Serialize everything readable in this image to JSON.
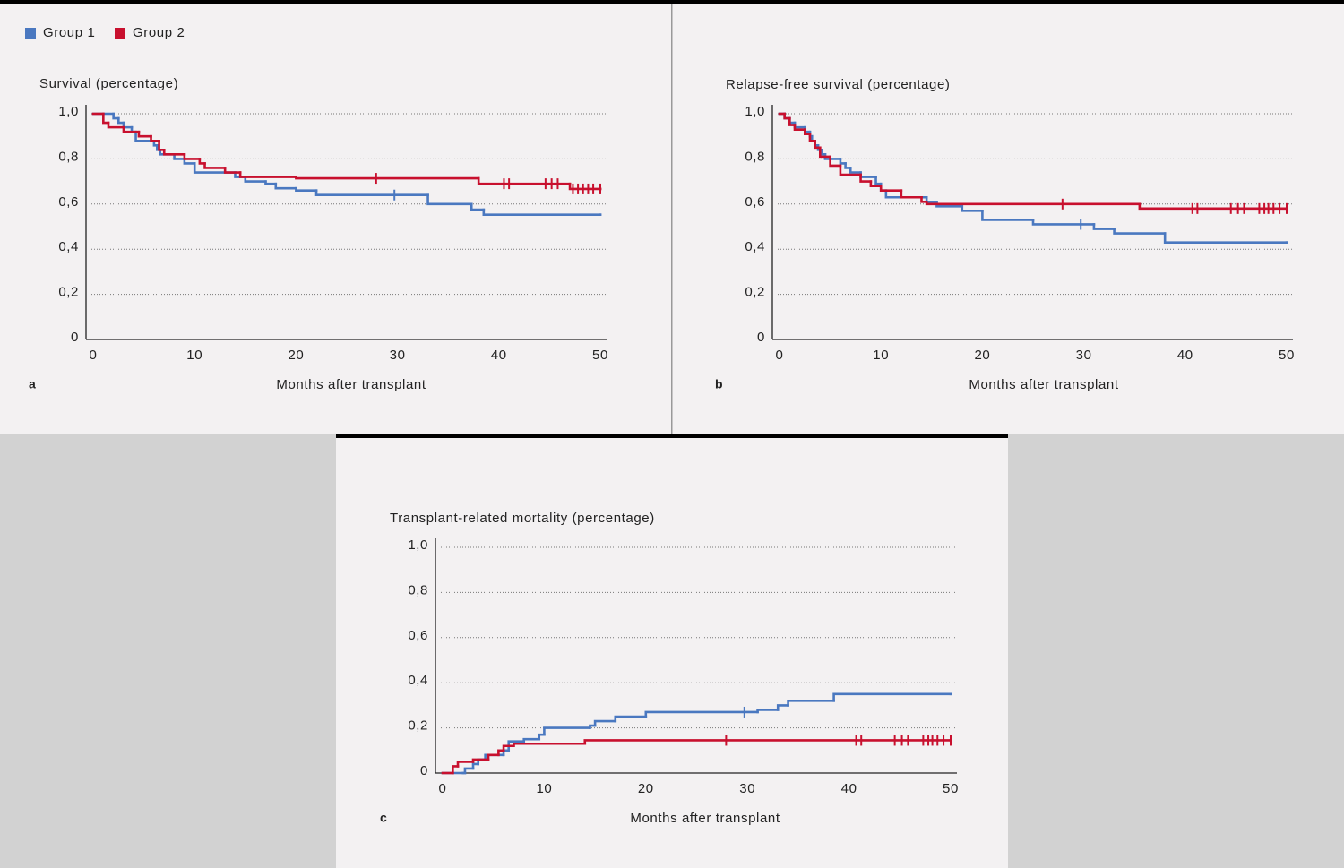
{
  "chart_data": [
    {
      "type": "line",
      "step": true,
      "label": "a",
      "title": "Survival (percentage)",
      "x_label": "Months after transplant",
      "xlim": [
        0,
        50
      ],
      "xticks": [
        0,
        10,
        20,
        30,
        40,
        50
      ],
      "ylim": [
        0,
        1
      ],
      "yticks": [
        0,
        {
          "value": 0.2,
          "label": "0,2"
        },
        {
          "value": 0.4,
          "label": "0,4"
        },
        {
          "value": 0.6,
          "label": "0,6"
        },
        {
          "value": 0.8,
          "label": "0,8"
        },
        {
          "value": 1,
          "label": "1,0"
        }
      ],
      "grid": true,
      "series": [
        {
          "name": "Group 1",
          "color": "#4a78c0",
          "x": [
            0,
            2,
            2.5,
            3,
            3.8,
            4.2,
            6,
            6.3,
            6.6,
            8,
            9,
            10,
            14,
            15,
            17,
            18,
            20,
            22,
            33,
            37.3,
            38.5,
            50
          ],
          "values": [
            1,
            0.98,
            0.96,
            0.94,
            0.92,
            0.88,
            0.86,
            0.84,
            0.82,
            0.8,
            0.78,
            0.74,
            0.72,
            0.7,
            0.69,
            0.67,
            0.66,
            0.64,
            0.6,
            0.575,
            0.553,
            0.553
          ],
          "censored": {
            "x": [
              29.7
            ],
            "values": [
              0.64
            ]
          }
        },
        {
          "name": "Group 2",
          "color": "#c8102e",
          "x": [
            0,
            1,
            1.5,
            3,
            4.5,
            5.7,
            6.5,
            7,
            9,
            10.5,
            11,
            13,
            14.5,
            20,
            38,
            47,
            50
          ],
          "values": [
            1,
            0.96,
            0.94,
            0.92,
            0.9,
            0.88,
            0.84,
            0.82,
            0.8,
            0.78,
            0.76,
            0.74,
            0.72,
            0.714,
            0.69,
            0.667,
            0.667
          ],
          "censored": {
            "x": [
              27.9,
              40.5,
              41,
              44.6,
              45.2,
              45.8,
              47.3,
              47.8,
              48.3,
              48.8,
              49.3,
              50
            ],
            "values": [
              0.714,
              0.69,
              0.69,
              0.69,
              0.69,
              0.69,
              0.667,
              0.667,
              0.667,
              0.667,
              0.667,
              0.667
            ]
          }
        }
      ]
    },
    {
      "type": "line",
      "step": true,
      "label": "b",
      "title": "Relapse-free survival (percentage)",
      "x_label": "Months after transplant",
      "xlim": [
        0,
        50
      ],
      "xticks": [
        0,
        10,
        20,
        30,
        40,
        50
      ],
      "ylim": [
        0,
        1
      ],
      "yticks": [
        0,
        {
          "value": 0.2,
          "label": "0,2"
        },
        {
          "value": 0.4,
          "label": "0,4"
        },
        {
          "value": 0.6,
          "label": "0,6"
        },
        {
          "value": 0.8,
          "label": "0,8"
        },
        {
          "value": 1,
          "label": "1,0"
        }
      ],
      "grid": true,
      "series": [
        {
          "color": "#4a78c0",
          "x": [
            0,
            0.5,
            1,
            1.5,
            2.5,
            3,
            3.2,
            3.5,
            3.8,
            4.2,
            4.5,
            6,
            6.5,
            7,
            8,
            9.5,
            10,
            10.5,
            14.5,
            15.5,
            18,
            20,
            25,
            31,
            33,
            38,
            50
          ],
          "values": [
            1,
            0.98,
            0.96,
            0.94,
            0.92,
            0.9,
            0.88,
            0.86,
            0.84,
            0.82,
            0.8,
            0.78,
            0.76,
            0.74,
            0.72,
            0.69,
            0.66,
            0.63,
            0.61,
            0.59,
            0.57,
            0.53,
            0.51,
            0.49,
            0.47,
            0.43,
            0.43
          ],
          "censored": {
            "x": [
              29.7
            ],
            "values": [
              0.51
            ]
          }
        },
        {
          "color": "#c8102e",
          "x": [
            0,
            0.5,
            1,
            1.5,
            2.5,
            3,
            3.5,
            4,
            5,
            6,
            8,
            9,
            10,
            12,
            14,
            14.5,
            35.5,
            50
          ],
          "values": [
            1,
            0.98,
            0.95,
            0.93,
            0.91,
            0.88,
            0.85,
            0.81,
            0.77,
            0.73,
            0.7,
            0.68,
            0.66,
            0.63,
            0.61,
            0.6,
            0.58,
            0.58
          ],
          "censored": {
            "x": [
              27.9,
              40.7,
              41.2,
              44.5,
              45.2,
              45.8,
              47.3,
              47.8,
              48.2,
              48.7,
              49.3,
              50
            ],
            "values": [
              0.6,
              0.58,
              0.58,
              0.58,
              0.58,
              0.58,
              0.58,
              0.58,
              0.58,
              0.58,
              0.58,
              0.58
            ]
          }
        }
      ]
    },
    {
      "type": "line",
      "step": true,
      "label": "c",
      "title": "Transplant-related mortality (percentage)",
      "x_label": "Months after transplant",
      "xlim": [
        0,
        50
      ],
      "xticks": [
        0,
        10,
        20,
        30,
        40,
        50
      ],
      "ylim": [
        0,
        1
      ],
      "yticks": [
        0,
        {
          "value": 0.2,
          "label": "0,2"
        },
        {
          "value": 0.4,
          "label": "0,4"
        },
        {
          "value": 0.6,
          "label": "0,6"
        },
        {
          "value": 0.8,
          "label": "0,8"
        },
        {
          "value": 1,
          "label": "1,0"
        }
      ],
      "grid": true,
      "series": [
        {
          "color": "#4a78c0",
          "x": [
            0,
            2,
            2.2,
            3,
            3.5,
            4.2,
            6,
            6.5,
            8,
            9.5,
            10,
            14.5,
            15,
            17,
            20,
            31,
            33,
            34,
            38.5,
            50
          ],
          "values": [
            0,
            0,
            0.02,
            0.04,
            0.06,
            0.08,
            0.1,
            0.14,
            0.15,
            0.17,
            0.2,
            0.21,
            0.23,
            0.25,
            0.27,
            0.28,
            0.3,
            0.32,
            0.35,
            0.35
          ],
          "censored": {
            "x": [
              29.7
            ],
            "values": [
              0.27
            ]
          }
        },
        {
          "color": "#c8102e",
          "x": [
            0,
            1,
            1.5,
            3,
            4.5,
            5.5,
            6,
            7,
            14,
            50
          ],
          "values": [
            0,
            0.03,
            0.05,
            0.06,
            0.08,
            0.1,
            0.12,
            0.13,
            0.145,
            0.145
          ],
          "censored": {
            "x": [
              27.9,
              40.7,
              41.2,
              44.5,
              45.2,
              45.8,
              47.3,
              47.8,
              48.2,
              48.7,
              49.3,
              50
            ],
            "values": [
              0.145,
              0.145,
              0.145,
              0.145,
              0.145,
              0.145,
              0.145,
              0.145,
              0.145,
              0.145,
              0.145,
              0.145
            ]
          }
        }
      ]
    }
  ]
}
